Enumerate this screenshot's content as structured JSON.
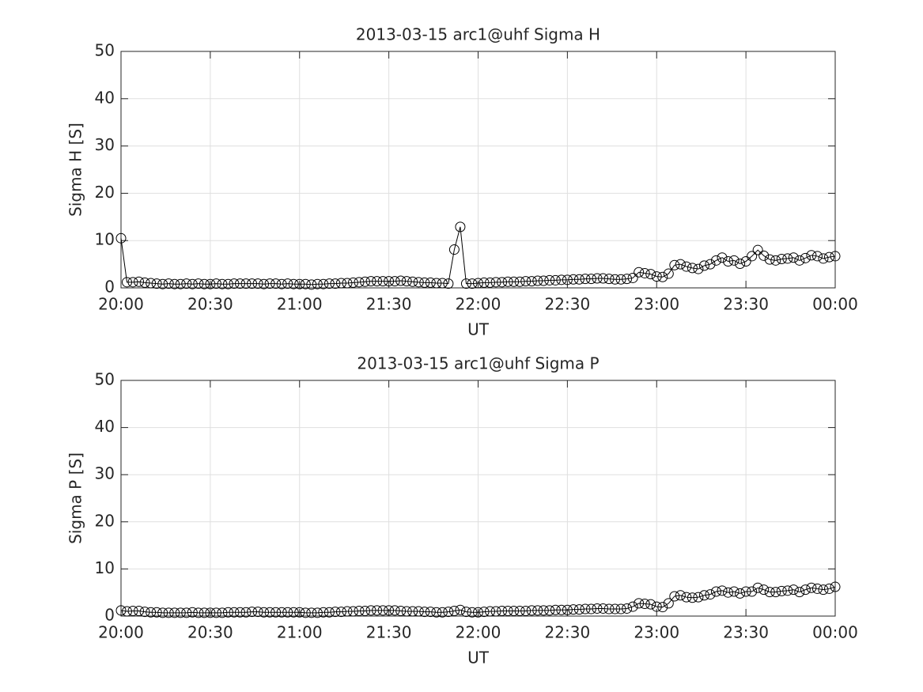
{
  "chart_data": [
    {
      "type": "line",
      "title": "2013-03-15  arc1@uhf Sigma H",
      "xlabel": "UT",
      "ylabel": "Sigma H [S]",
      "x": [
        0,
        2,
        4,
        6,
        8,
        10,
        12,
        14,
        16,
        18,
        20,
        22,
        24,
        26,
        28,
        30,
        32,
        34,
        36,
        38,
        40,
        42,
        44,
        46,
        48,
        50,
        52,
        54,
        56,
        58,
        60,
        62,
        64,
        66,
        68,
        70,
        72,
        74,
        76,
        78,
        80,
        82,
        84,
        86,
        88,
        90,
        92,
        94,
        96,
        98,
        100,
        102,
        104,
        106,
        108,
        110,
        112,
        114,
        116,
        118,
        120,
        122,
        124,
        126,
        128,
        130,
        132,
        134,
        136,
        138,
        140,
        142,
        144,
        146,
        148,
        150,
        152,
        154,
        156,
        158,
        160,
        162,
        164,
        166,
        168,
        170,
        172,
        174,
        176,
        178,
        180,
        182,
        184,
        186,
        188,
        190,
        192,
        194,
        196,
        198,
        200,
        202,
        204,
        206,
        208,
        210,
        212,
        214,
        216,
        218,
        220,
        222,
        224,
        226,
        228,
        230,
        232,
        234,
        236,
        238,
        240
      ],
      "series": [
        {
          "color": "#000000",
          "values": [
            10.5,
            1.2,
            1.2,
            1.3,
            1.1,
            1.0,
            0.9,
            0.8,
            0.9,
            0.8,
            0.8,
            0.9,
            0.8,
            0.9,
            0.8,
            0.8,
            0.9,
            0.8,
            0.8,
            0.9,
            0.9,
            0.9,
            0.9,
            0.9,
            0.8,
            0.9,
            0.9,
            0.8,
            0.9,
            0.8,
            0.8,
            0.8,
            0.7,
            0.8,
            0.8,
            0.9,
            0.9,
            1.0,
            1.0,
            1.1,
            1.2,
            1.3,
            1.4,
            1.4,
            1.4,
            1.4,
            1.4,
            1.5,
            1.4,
            1.3,
            1.2,
            1.1,
            1.1,
            1.0,
            1.0,
            0.9,
            8.1,
            12.9,
            0.9,
            0.9,
            1.0,
            1.1,
            1.1,
            1.2,
            1.2,
            1.3,
            1.3,
            1.3,
            1.4,
            1.4,
            1.5,
            1.5,
            1.6,
            1.6,
            1.7,
            1.7,
            1.8,
            1.8,
            1.9,
            1.9,
            2.0,
            2.0,
            1.9,
            1.8,
            1.8,
            1.9,
            2.1,
            3.3,
            3.1,
            2.9,
            2.4,
            2.3,
            3.0,
            4.8,
            5.0,
            4.5,
            4.2,
            4.0,
            4.7,
            5.0,
            5.8,
            6.4,
            5.6,
            5.8,
            5.1,
            5.6,
            6.7,
            8.0,
            6.8,
            6.0,
            5.8,
            6.1,
            6.2,
            6.4,
            5.8,
            6.3,
            6.9,
            6.7,
            6.2,
            6.5,
            6.7
          ]
        }
      ],
      "xlim": [
        0,
        240
      ],
      "xticks": [
        {
          "value": 0,
          "label": "20:00"
        },
        {
          "value": 30,
          "label": "20:30"
        },
        {
          "value": 60,
          "label": "21:00"
        },
        {
          "value": 90,
          "label": "21:30"
        },
        {
          "value": 120,
          "label": "22:00"
        },
        {
          "value": 150,
          "label": "22:30"
        },
        {
          "value": 180,
          "label": "23:00"
        },
        {
          "value": 210,
          "label": "23:30"
        },
        {
          "value": 240,
          "label": "00:00"
        }
      ],
      "ylim": [
        0,
        50
      ],
      "yticks": [
        0,
        10,
        20,
        30,
        40,
        50
      ],
      "grid": true,
      "marker": "circle"
    },
    {
      "type": "line",
      "title": "2013-03-15  arc1@uhf Sigma P",
      "xlabel": "UT",
      "ylabel": "Sigma P [S]",
      "x": [
        0,
        2,
        4,
        6,
        8,
        10,
        12,
        14,
        16,
        18,
        20,
        22,
        24,
        26,
        28,
        30,
        32,
        34,
        36,
        38,
        40,
        42,
        44,
        46,
        48,
        50,
        52,
        54,
        56,
        58,
        60,
        62,
        64,
        66,
        68,
        70,
        72,
        74,
        76,
        78,
        80,
        82,
        84,
        86,
        88,
        90,
        92,
        94,
        96,
        98,
        100,
        102,
        104,
        106,
        108,
        110,
        112,
        114,
        116,
        118,
        120,
        122,
        124,
        126,
        128,
        130,
        132,
        134,
        136,
        138,
        140,
        142,
        144,
        146,
        148,
        150,
        152,
        154,
        156,
        158,
        160,
        162,
        164,
        166,
        168,
        170,
        172,
        174,
        176,
        178,
        180,
        182,
        184,
        186,
        188,
        190,
        192,
        194,
        196,
        198,
        200,
        202,
        204,
        206,
        208,
        210,
        212,
        214,
        216,
        218,
        220,
        222,
        224,
        226,
        228,
        230,
        232,
        234,
        236,
        238,
        240
      ],
      "series": [
        {
          "color": "#000000",
          "values": [
            1.2,
            1.0,
            1.1,
            1.1,
            0.9,
            0.8,
            0.8,
            0.7,
            0.7,
            0.7,
            0.7,
            0.7,
            0.8,
            0.7,
            0.7,
            0.7,
            0.7,
            0.7,
            0.8,
            0.8,
            0.8,
            0.8,
            0.9,
            0.9,
            0.8,
            0.8,
            0.8,
            0.8,
            0.8,
            0.8,
            0.8,
            0.7,
            0.7,
            0.7,
            0.8,
            0.8,
            0.9,
            0.9,
            1.0,
            1.0,
            1.1,
            1.1,
            1.2,
            1.2,
            1.2,
            1.2,
            1.2,
            1.1,
            1.0,
            1.0,
            1.0,
            0.9,
            0.9,
            0.8,
            0.8,
            0.9,
            1.1,
            1.3,
            0.9,
            0.8,
            0.8,
            0.9,
            1.0,
            1.0,
            1.1,
            1.1,
            1.1,
            1.1,
            1.1,
            1.2,
            1.2,
            1.2,
            1.2,
            1.3,
            1.3,
            1.3,
            1.4,
            1.4,
            1.5,
            1.5,
            1.6,
            1.6,
            1.5,
            1.5,
            1.5,
            1.6,
            2.0,
            2.7,
            2.6,
            2.5,
            2.0,
            1.9,
            2.7,
            4.2,
            4.4,
            4.0,
            3.9,
            4.0,
            4.4,
            4.6,
            5.2,
            5.4,
            5.0,
            5.2,
            4.8,
            5.2,
            5.2,
            6.0,
            5.6,
            5.1,
            5.1,
            5.3,
            5.4,
            5.6,
            5.1,
            5.6,
            6.0,
            5.8,
            5.6,
            5.8,
            6.2
          ]
        }
      ],
      "xlim": [
        0,
        240
      ],
      "xticks": [
        {
          "value": 0,
          "label": "20:00"
        },
        {
          "value": 30,
          "label": "20:30"
        },
        {
          "value": 60,
          "label": "21:00"
        },
        {
          "value": 90,
          "label": "21:30"
        },
        {
          "value": 120,
          "label": "22:00"
        },
        {
          "value": 150,
          "label": "22:30"
        },
        {
          "value": 180,
          "label": "23:00"
        },
        {
          "value": 210,
          "label": "23:30"
        },
        {
          "value": 240,
          "label": "00:00"
        }
      ],
      "ylim": [
        0,
        50
      ],
      "yticks": [
        0,
        10,
        20,
        30,
        40,
        50
      ],
      "grid": true,
      "marker": "circle"
    }
  ]
}
